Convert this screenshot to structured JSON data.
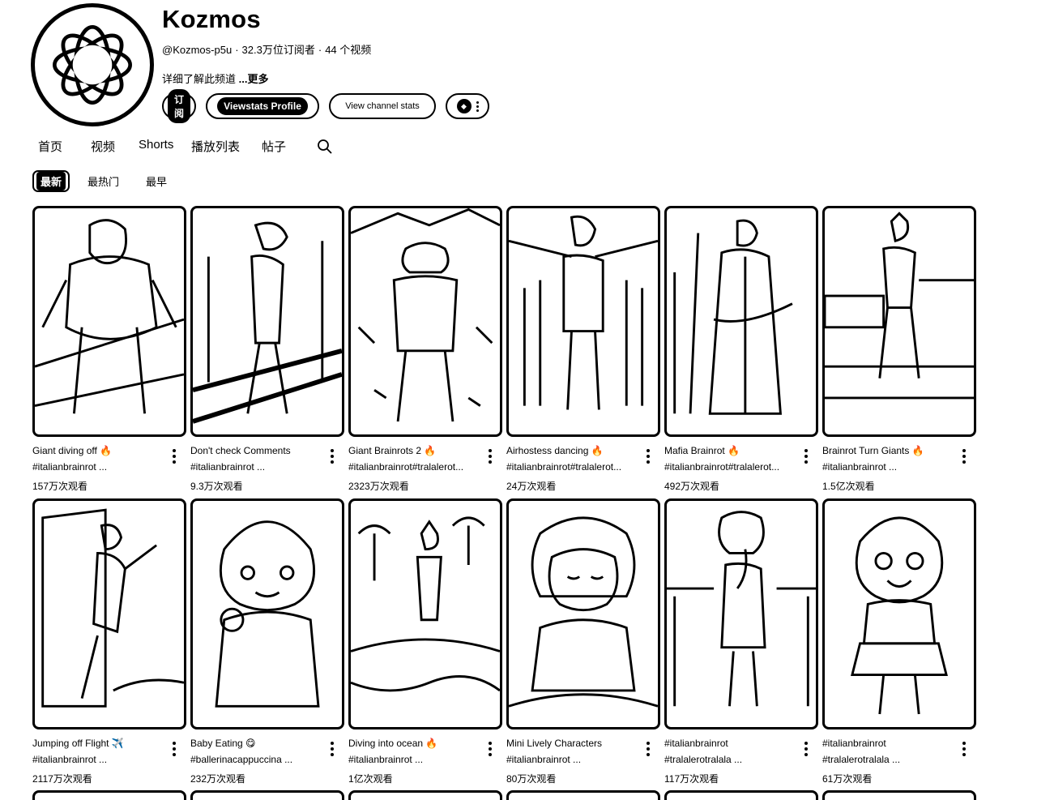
{
  "channel": {
    "name": "Kozmos",
    "handle": "@Kozmos-p5u",
    "subscribers": "32.3万位订阅者",
    "videos": "44 个视频",
    "description": "详细了解此频道",
    "more_label": "...更多"
  },
  "buttons": {
    "subscribe": "订阅",
    "viewstats_profile": "Viewstats Profile",
    "view_channel_stats": "View channel stats",
    "extension_icon": "vs-logo-icon"
  },
  "tabs": [
    {
      "label": "首页"
    },
    {
      "label": "视频"
    },
    {
      "label": "Shorts",
      "active": true
    },
    {
      "label": "播放列表"
    },
    {
      "label": "帖子"
    }
  ],
  "sort_chips": [
    {
      "label": "最新",
      "active": true
    },
    {
      "label": "最热门"
    },
    {
      "label": "最早"
    }
  ],
  "shorts": [
    {
      "title": "Giant diving off 🔥",
      "tag": "#italianbrainrot ...",
      "views": "157万次观看"
    },
    {
      "title": "Don't check Comments",
      "tag": "#italianbrainrot ...",
      "views": "9.3万次观看"
    },
    {
      "title": "Giant Brainrots 2 🔥",
      "tag": "#italianbrainrot#tralalerot...",
      "views": "2323万次观看"
    },
    {
      "title": "Airhostess dancing 🔥",
      "tag": "#italianbrainrot#tralalerot...",
      "views": "24万次观看"
    },
    {
      "title": "Mafia Brainrot 🔥",
      "tag": "#italianbrainrot#tralalerot...",
      "views": "492万次观看"
    },
    {
      "title": "Brainrot Turn Giants 🔥",
      "tag": "#italianbrainrot ...",
      "views": "1.5亿次观看"
    },
    {
      "title": "Jumping off Flight ✈️",
      "tag": "#italianbrainrot ...",
      "views": "2117万次观看"
    },
    {
      "title": "Baby Eating 😋",
      "tag": "#ballerinacappuccina ...",
      "views": "232万次观看"
    },
    {
      "title": "Diving into ocean 🔥",
      "tag": "#italianbrainrot ...",
      "views": "1亿次观看"
    },
    {
      "title": "Mini Lively Characters",
      "tag": "#italianbrainrot ...",
      "views": "80万次观看"
    },
    {
      "title": "#italianbrainrot",
      "tag": "#tralalerotralala ...",
      "views": "117万次观看"
    },
    {
      "title": "#italianbrainrot",
      "tag": "#tralalerotralala ...",
      "views": "61万次观看"
    }
  ]
}
